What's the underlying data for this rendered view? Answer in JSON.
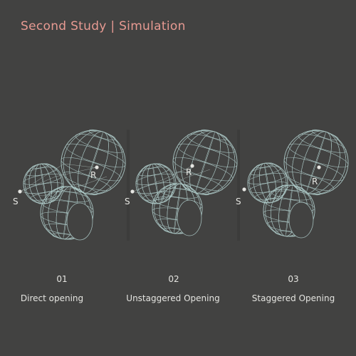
{
  "title": "Second Study | Simulation",
  "colors": {
    "title": "#e79a92",
    "background": "#424241",
    "wire": "#b4d2d0"
  },
  "panels": [
    {
      "number": "01",
      "caption": "Direct opening",
      "source_label": "S",
      "receiver_label": "R"
    },
    {
      "number": "02",
      "caption": "Unstaggered Opening",
      "source_label": "S",
      "receiver_label": "R"
    },
    {
      "number": "03",
      "caption": "Staggered Opening",
      "source_label": "S",
      "receiver_label": "R"
    }
  ]
}
